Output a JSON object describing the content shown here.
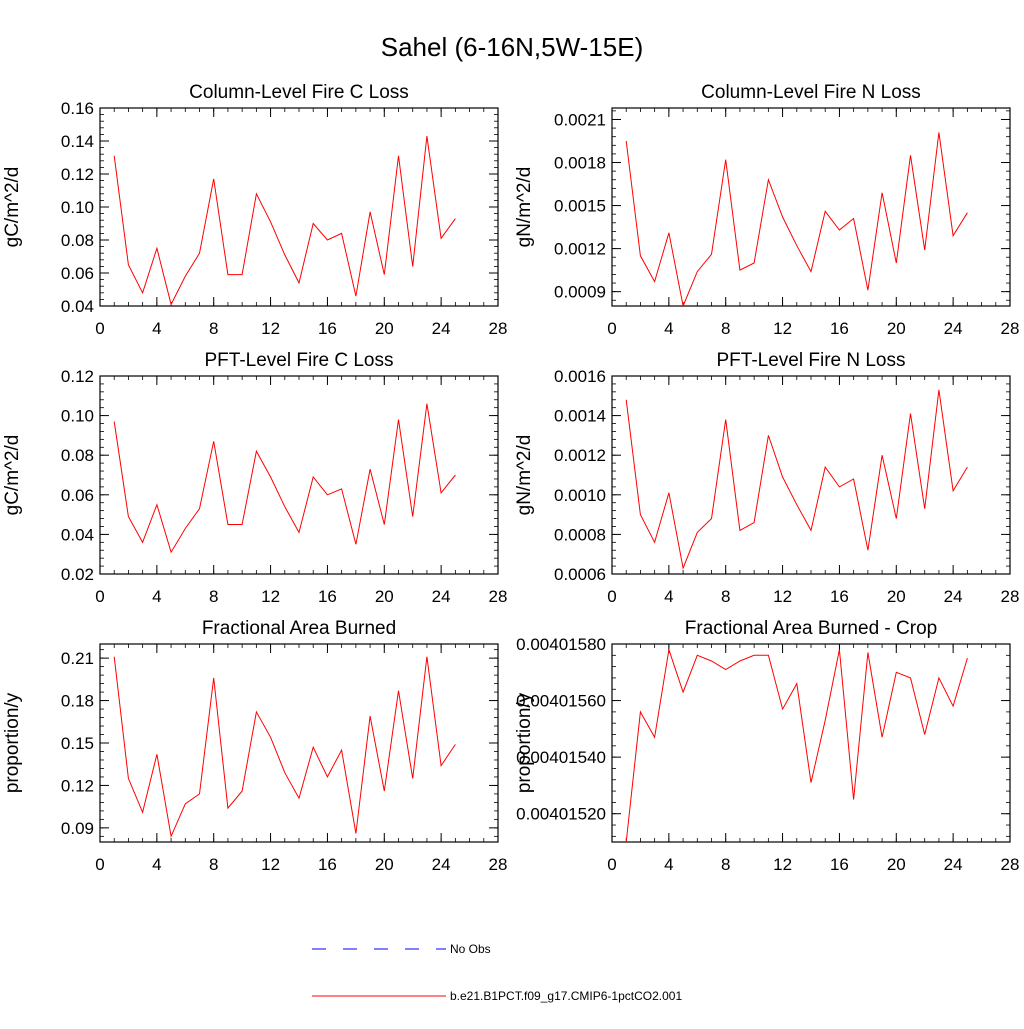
{
  "figure": {
    "title": "Sahel (6-16N,5W-15E)"
  },
  "legend": {
    "entries": [
      {
        "label": "No Obs",
        "color": "#0000ff",
        "dash": "dashed"
      },
      {
        "label": "b.e21.B1PCT.f09_g17.CMIP6-1pctCO2.001",
        "color": "#ff0000",
        "dash": "solid"
      }
    ]
  },
  "chart_data": [
    {
      "type": "line",
      "title": "Column-Level Fire C Loss",
      "ylabel": "gC/m^2/d",
      "xlim": [
        0,
        28
      ],
      "ylim": [
        0.04,
        0.16
      ],
      "xticks": [
        0,
        4,
        8,
        12,
        16,
        20,
        24,
        28
      ],
      "xtick_labels": [
        "0",
        "4",
        "8",
        "12",
        "16",
        "20",
        "24",
        "28"
      ],
      "yticks": [
        0.04,
        0.06,
        0.08,
        0.1,
        0.12,
        0.14,
        0.16
      ],
      "ytick_labels": [
        "0.04",
        "0.06",
        "0.08",
        "0.10",
        "0.12",
        "0.14",
        "0.16"
      ],
      "x": [
        1,
        2,
        3,
        4,
        5,
        6,
        7,
        8,
        9,
        10,
        11,
        12,
        13,
        14,
        15,
        16,
        17,
        18,
        19,
        20,
        21,
        22,
        23,
        24,
        25
      ],
      "series": [
        {
          "color": "#ff0000",
          "values": [
            0.131,
            0.065,
            0.048,
            0.075,
            0.041,
            0.058,
            0.072,
            0.117,
            0.059,
            0.059,
            0.108,
            0.091,
            0.071,
            0.054,
            0.09,
            0.08,
            0.084,
            0.046,
            0.097,
            0.059,
            0.131,
            0.064,
            0.143,
            0.081,
            0.093
          ]
        }
      ]
    },
    {
      "type": "line",
      "title": "Column-Level Fire N Loss",
      "ylabel": "gN/m^2/d",
      "xlim": [
        0,
        28
      ],
      "ylim": [
        0.0008,
        0.00218
      ],
      "xticks": [
        0,
        4,
        8,
        12,
        16,
        20,
        24,
        28
      ],
      "xtick_labels": [
        "0",
        "4",
        "8",
        "12",
        "16",
        "20",
        "24",
        "28"
      ],
      "yticks": [
        0.0009,
        0.0012,
        0.0015,
        0.0018,
        0.0021
      ],
      "ytick_labels": [
        "0.0009",
        "0.0012",
        "0.0015",
        "0.0018",
        "0.0021"
      ],
      "x": [
        1,
        2,
        3,
        4,
        5,
        6,
        7,
        8,
        9,
        10,
        11,
        12,
        13,
        14,
        15,
        16,
        17,
        18,
        19,
        20,
        21,
        22,
        23,
        24,
        25
      ],
      "series": [
        {
          "color": "#ff0000",
          "values": [
            0.00195,
            0.00115,
            0.00097,
            0.00131,
            0.0008,
            0.00104,
            0.00116,
            0.00182,
            0.00105,
            0.0011,
            0.00168,
            0.00142,
            0.00122,
            0.00104,
            0.00146,
            0.00133,
            0.00141,
            0.00091,
            0.00159,
            0.0011,
            0.00185,
            0.00119,
            0.00201,
            0.00129,
            0.00145
          ]
        }
      ]
    },
    {
      "type": "line",
      "title": "PFT-Level Fire C Loss",
      "ylabel": "gC/m^2/d",
      "xlim": [
        0,
        28
      ],
      "ylim": [
        0.02,
        0.12
      ],
      "xticks": [
        0,
        4,
        8,
        12,
        16,
        20,
        24,
        28
      ],
      "xtick_labels": [
        "0",
        "4",
        "8",
        "12",
        "16",
        "20",
        "24",
        "28"
      ],
      "yticks": [
        0.02,
        0.04,
        0.06,
        0.08,
        0.1,
        0.12
      ],
      "ytick_labels": [
        "0.02",
        "0.04",
        "0.06",
        "0.08",
        "0.10",
        "0.12"
      ],
      "x": [
        1,
        2,
        3,
        4,
        5,
        6,
        7,
        8,
        9,
        10,
        11,
        12,
        13,
        14,
        15,
        16,
        17,
        18,
        19,
        20,
        21,
        22,
        23,
        24,
        25
      ],
      "series": [
        {
          "color": "#ff0000",
          "values": [
            0.097,
            0.049,
            0.036,
            0.055,
            0.031,
            0.043,
            0.053,
            0.087,
            0.045,
            0.045,
            0.082,
            0.069,
            0.054,
            0.041,
            0.069,
            0.06,
            0.063,
            0.035,
            0.073,
            0.045,
            0.098,
            0.049,
            0.106,
            0.061,
            0.07
          ]
        }
      ]
    },
    {
      "type": "line",
      "title": "PFT-Level Fire N Loss",
      "ylabel": "gN/m^2/d",
      "xlim": [
        0,
        28
      ],
      "ylim": [
        0.0006,
        0.0016
      ],
      "xticks": [
        0,
        4,
        8,
        12,
        16,
        20,
        24,
        28
      ],
      "xtick_labels": [
        "0",
        "4",
        "8",
        "12",
        "16",
        "20",
        "24",
        "28"
      ],
      "yticks": [
        0.0006,
        0.0008,
        0.001,
        0.0012,
        0.0014,
        0.0016
      ],
      "ytick_labels": [
        "0.0006",
        "0.0008",
        "0.0010",
        "0.0012",
        "0.0014",
        "0.0016"
      ],
      "x": [
        1,
        2,
        3,
        4,
        5,
        6,
        7,
        8,
        9,
        10,
        11,
        12,
        13,
        14,
        15,
        16,
        17,
        18,
        19,
        20,
        21,
        22,
        23,
        24,
        25
      ],
      "series": [
        {
          "color": "#ff0000",
          "values": [
            0.00148,
            0.0009,
            0.00076,
            0.00101,
            0.00063,
            0.00081,
            0.00088,
            0.00138,
            0.00082,
            0.00086,
            0.0013,
            0.00109,
            0.00095,
            0.00082,
            0.00114,
            0.00104,
            0.00108,
            0.00072,
            0.0012,
            0.00088,
            0.00141,
            0.00093,
            0.00153,
            0.00102,
            0.00114
          ]
        }
      ]
    },
    {
      "type": "line",
      "title": "Fractional Area Burned",
      "ylabel": "proportion/y",
      "xlim": [
        0,
        28
      ],
      "ylim": [
        0.08,
        0.22
      ],
      "xticks": [
        0,
        4,
        8,
        12,
        16,
        20,
        24,
        28
      ],
      "xtick_labels": [
        "0",
        "4",
        "8",
        "12",
        "16",
        "20",
        "24",
        "28"
      ],
      "yticks": [
        0.09,
        0.12,
        0.15,
        0.18,
        0.21
      ],
      "ytick_labels": [
        "0.09",
        "0.12",
        "0.15",
        "0.18",
        "0.21"
      ],
      "x": [
        1,
        2,
        3,
        4,
        5,
        6,
        7,
        8,
        9,
        10,
        11,
        12,
        13,
        14,
        15,
        16,
        17,
        18,
        19,
        20,
        21,
        22,
        23,
        24,
        25
      ],
      "series": [
        {
          "color": "#ff0000",
          "values": [
            0.211,
            0.125,
            0.101,
            0.142,
            0.084,
            0.107,
            0.114,
            0.196,
            0.104,
            0.116,
            0.172,
            0.154,
            0.129,
            0.111,
            0.147,
            0.126,
            0.145,
            0.086,
            0.169,
            0.116,
            0.187,
            0.125,
            0.211,
            0.134,
            0.149
          ]
        }
      ]
    },
    {
      "type": "line",
      "title": "Fractional Area Burned - Crop",
      "ylabel": "proportion/y",
      "xlim": [
        0,
        28
      ],
      "ylim": [
        0.0040151,
        0.0040158
      ],
      "xticks": [
        0,
        4,
        8,
        12,
        16,
        20,
        24,
        28
      ],
      "xtick_labels": [
        "0",
        "4",
        "8",
        "12",
        "16",
        "20",
        "24",
        "28"
      ],
      "yticks": [
        0.0040152,
        0.0040154,
        0.0040156,
        0.0040158
      ],
      "ytick_labels": [
        "0.00401520",
        "0.00401540",
        "0.00401560",
        "0.00401580"
      ],
      "x": [
        1,
        2,
        3,
        4,
        5,
        6,
        7,
        8,
        9,
        10,
        11,
        12,
        13,
        14,
        15,
        16,
        17,
        18,
        19,
        20,
        21,
        22,
        23,
        24,
        25
      ],
      "series": [
        {
          "color": "#ff0000",
          "values": [
            0.0040151,
            0.00401556,
            0.00401547,
            0.00401578,
            0.00401563,
            0.00401576,
            0.00401574,
            0.00401571,
            0.00401574,
            0.00401576,
            0.00401576,
            0.00401557,
            0.00401566,
            0.00401531,
            0.00401553,
            0.00401578,
            0.00401525,
            0.00401577,
            0.00401547,
            0.0040157,
            0.00401568,
            0.00401548,
            0.00401568,
            0.00401558,
            0.00401575
          ]
        }
      ]
    }
  ]
}
